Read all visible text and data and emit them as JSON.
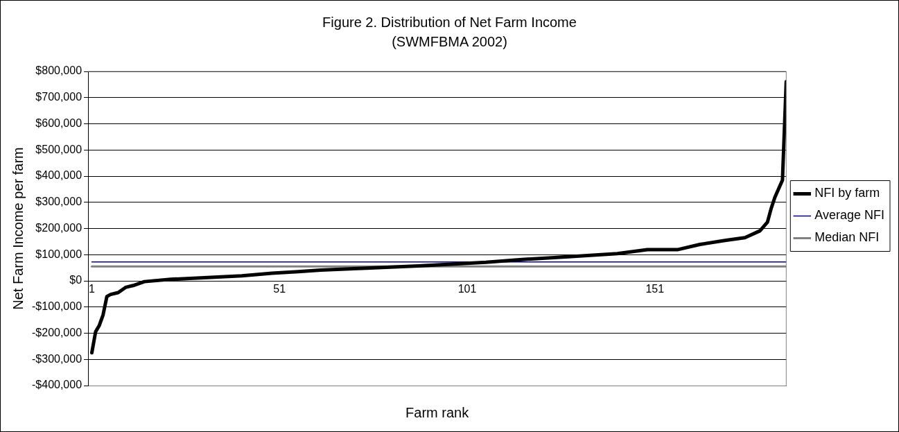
{
  "chart_data": {
    "type": "line",
    "title": "Figure 2. Distribution of Net Farm Income",
    "subtitle": "(SWMFBMA 2002)",
    "xlabel": "Farm rank",
    "ylabel": "Net Farm Income per farm",
    "xlim": [
      0,
      186
    ],
    "xticks": [
      1,
      51,
      101,
      151
    ],
    "ylim": [
      -400000,
      800000
    ],
    "yticks": [
      {
        "value": -400000,
        "label": "-$400,000"
      },
      {
        "value": -300000,
        "label": "-$300,000"
      },
      {
        "value": -200000,
        "label": "-$200,000"
      },
      {
        "value": -100000,
        "label": "-$100,000"
      },
      {
        "value": 0,
        "label": "$0"
      },
      {
        "value": 100000,
        "label": "$100,000"
      },
      {
        "value": 200000,
        "label": "$200,000"
      },
      {
        "value": 300000,
        "label": "$300,000"
      },
      {
        "value": 400000,
        "label": "$400,000"
      },
      {
        "value": 500000,
        "label": "$500,000"
      },
      {
        "value": 600000,
        "label": "$600,000"
      },
      {
        "value": 700000,
        "label": "$700,000"
      },
      {
        "value": 800000,
        "label": "$800,000"
      }
    ],
    "grid": "y",
    "legend": "right",
    "marker": "none",
    "line_style": "solid",
    "series": [
      {
        "name": "NFI by farm",
        "color": "#000000",
        "x": [
          1,
          2,
          3,
          4,
          5,
          6,
          8,
          10,
          12,
          15,
          22,
          30,
          41,
          49,
          56,
          62,
          73,
          88,
          106,
          115,
          128,
          141,
          149,
          157,
          163,
          170,
          175,
          179,
          181,
          182,
          183,
          185,
          186
        ],
        "values": [
          -275000,
          -195000,
          -170000,
          -130000,
          -60000,
          -52000,
          -45000,
          -25000,
          -18000,
          -3000,
          6000,
          11000,
          19000,
          29000,
          35000,
          41000,
          48000,
          57000,
          71000,
          81000,
          92000,
          104000,
          119000,
          119000,
          139000,
          155000,
          165000,
          191000,
          224000,
          277000,
          320000,
          385000,
          761000
        ]
      },
      {
        "name": "Average NFI",
        "color": "#000080",
        "x": [
          1,
          186
        ],
        "values": [
          72000,
          72000
        ]
      },
      {
        "name": "Median NFI",
        "color": "#808080",
        "x": [
          1,
          186
        ],
        "values": [
          55000,
          55000
        ]
      }
    ]
  }
}
